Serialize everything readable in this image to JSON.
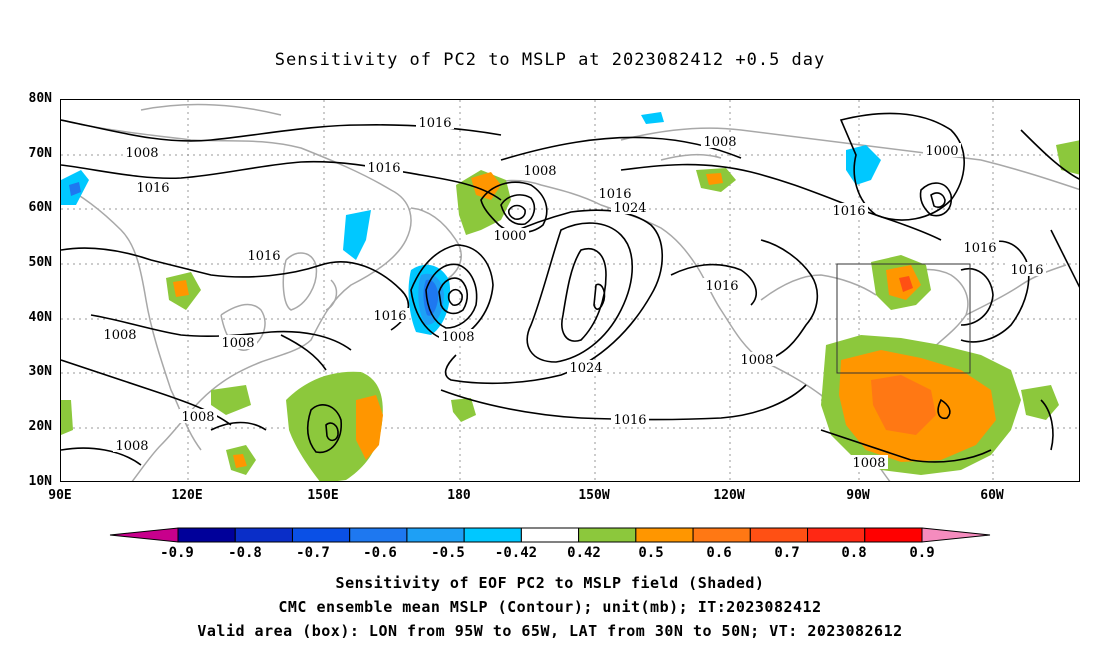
{
  "title": "Sensitivity of PC2 to MSLP at 2023082412 +0.5 day",
  "map": {
    "lat_labels": [
      "80N",
      "70N",
      "60N",
      "50N",
      "40N",
      "30N",
      "20N",
      "10N"
    ],
    "lon_labels": [
      "90E",
      "120E",
      "150E",
      "180",
      "150W",
      "120W",
      "90W",
      "60W"
    ],
    "contour_labels": [
      "1016",
      "1008",
      "1016",
      "1016",
      "1016",
      "1016",
      "1008",
      "1008",
      "1000",
      "1008",
      "1016",
      "1024",
      "1016",
      "1000",
      "1008",
      "1016",
      "1016",
      "1016",
      "1008",
      "1024",
      "1016",
      "1008",
      "1008",
      "1008",
      "1008"
    ],
    "valid_box": {
      "lon_from": "95W",
      "lon_to": "65W",
      "lat_from": "30N",
      "lat_to": "50N"
    }
  },
  "colorbar": {
    "labels": [
      "-0.9",
      "-0.8",
      "-0.7",
      "-0.6",
      "-0.5",
      "-0.42",
      "0.42",
      "0.5",
      "0.6",
      "0.7",
      "0.8",
      "0.9"
    ],
    "colors": [
      "#c8008c",
      "#00009a",
      "#0a2ec8",
      "#0a50e6",
      "#1e78f0",
      "#1ea0f5",
      "#00c8ff",
      "#ffffff",
      "#8cc83c",
      "#ff9600",
      "#ff7814",
      "#ff5014",
      "#ff2814",
      "#ff0000",
      "#f58cbe"
    ]
  },
  "captions": {
    "line1": "Sensitivity of EOF PC2 to MSLP field (Shaded)",
    "line2": "CMC ensemble mean MSLP (Contour); unit(mb); IT:2023082412",
    "line3": "Valid area (box): LON from 95W to 65W, LAT from 30N to 50N; VT: 2023082612"
  }
}
